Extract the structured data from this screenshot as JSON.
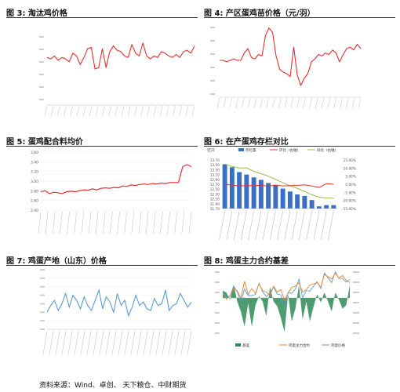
{
  "panels": {
    "p3": {
      "title": "图 3: 淘汰鸡价格"
    },
    "p4": {
      "title": "图 4: 产区蛋鸡苗价格（元/羽）"
    },
    "p5": {
      "title": "图 5: 蛋鸡配合料均价"
    },
    "p6": {
      "title": "图 6: 在产蛋鸡存栏对比"
    },
    "p7": {
      "title": "图 7: 鸡蛋产地（山东）价格"
    },
    "p8": {
      "title": "图 8: 鸡蛋主力合约基差"
    }
  },
  "footer": "资料来源：Wind、卓创、 天下粮仓、中财期货",
  "colors": {
    "red": "#e23030",
    "green": "#8ec045",
    "blue": "#3a6fc4",
    "line_blue": "#5b9bd5",
    "orange": "#e8842a",
    "dark_green": "#2e8b57"
  },
  "chart_data": [
    {
      "id": "p3",
      "type": "line",
      "x_range": [
        "2018",
        "2024"
      ],
      "ylim": [
        5,
        10
      ],
      "series": [
        {
          "values": [
            8.3,
            8.2,
            8.4,
            8.1,
            8.3,
            8.2,
            8.0,
            8.6,
            8.4,
            7.8,
            8.3,
            8.9,
            9.0,
            7.5,
            7.6,
            8.9,
            7.6,
            8.7,
            9.1,
            8.8,
            8.7,
            8.4,
            8.3,
            9.2,
            8.6,
            8.4,
            9.3,
            8.4,
            8.2,
            8.4,
            8.3,
            8.7,
            8.6,
            8.4,
            8.3,
            8.5,
            8.3,
            8.7,
            8.8,
            8.6,
            9.1
          ]
        }
      ]
    },
    {
      "id": "p4",
      "type": "line",
      "ylim": [
        0,
        5
      ],
      "series": [
        {
          "values": [
            2.5,
            2.5,
            2.4,
            2.5,
            2.6,
            2.5,
            2.5,
            3.0,
            3.3,
            2.7,
            2.6,
            2.9,
            2.8,
            4.2,
            4.7,
            4.4,
            2.8,
            1.9,
            1.7,
            1.6,
            1.4,
            3.4,
            1.5,
            0.8,
            1.3,
            1.6,
            2.4,
            2.6,
            2.9,
            2.8,
            3.0,
            2.9,
            3.2,
            3.0,
            2.4,
            2.9,
            3.3,
            3.4,
            3.2,
            3.6,
            3.3
          ]
        }
      ]
    },
    {
      "id": "p5",
      "type": "line",
      "yticks": [
        "3.60",
        "3.40",
        "3.20",
        "3.00",
        "2.80",
        "2.60",
        "2.40"
      ],
      "ylim": [
        2.4,
        3.6
      ],
      "series": [
        {
          "values": [
            2.78,
            2.8,
            2.74,
            2.77,
            2.76,
            2.74,
            2.78,
            2.79,
            2.78,
            2.8,
            2.82,
            2.81,
            2.84,
            2.82,
            2.85,
            2.86,
            2.85,
            2.87,
            2.86,
            2.9,
            2.89,
            2.92,
            2.91,
            2.93,
            2.94,
            2.93,
            2.95,
            2.94,
            2.96,
            2.95,
            2.97,
            2.97,
            2.97,
            3.3,
            3.34,
            3.3
          ]
        }
      ]
    },
    {
      "id": "p6",
      "type": "bar",
      "ylabel": "亿只",
      "legend": [
        "存栏量",
        "环比（右轴）",
        "同比（右轴）"
      ],
      "yticks_left": [
        "13.70",
        "13.50",
        "13.30",
        "13.10",
        "12.90",
        "12.70",
        "12.50",
        "12.30",
        "12.10",
        "11.90",
        "11.70"
      ],
      "yticks_right": [
        "15.00%",
        "10.00%",
        "5.00%",
        "0.00%",
        "-5.00%",
        "-10.00%",
        "-15.00%"
      ],
      "ylim_left": [
        11.7,
        13.7
      ],
      "ylim_right": [
        -15,
        15
      ],
      "bars": [
        13.52,
        13.4,
        13.2,
        13.1,
        12.98,
        12.88,
        12.75,
        12.67,
        12.52,
        12.4,
        12.28,
        12.22,
        12.05,
        11.79,
        11.84,
        11.84
      ],
      "mom": [
        0,
        -0.6,
        -1.0,
        -0.8,
        -0.9,
        -0.6,
        -1.2,
        -0.5,
        -1.1,
        -0.8,
        -0.7,
        -0.4,
        -1.1,
        -2.0,
        0.4,
        0
      ],
      "yoy": [
        12.5,
        11.0,
        10.0,
        10.0,
        8.0,
        6.5,
        5.0,
        3.0,
        1.0,
        -1.0,
        -2.5,
        -4.5,
        -6.5,
        -8.0,
        -8.5,
        -8.5
      ]
    },
    {
      "id": "p7",
      "type": "line",
      "ylim": [
        2.5,
        6
      ],
      "series": [
        {
          "values": [
            3.5,
            3.9,
            4.2,
            3.6,
            4.0,
            4.6,
            3.8,
            4.5,
            4.2,
            3.7,
            4.4,
            3.9,
            3.6,
            4.2,
            4.8,
            3.7,
            4.4,
            4.1,
            3.5,
            4.6,
            3.9,
            4.2,
            3.3,
            3.8,
            4.5,
            3.9,
            4.1,
            3.7,
            3.6,
            4.3,
            3.9,
            4.0,
            4.8,
            3.6,
            3.9,
            4.0,
            4.6,
            4.2,
            3.8,
            4.1
          ]
        }
      ]
    },
    {
      "id": "p8",
      "type": "area",
      "legend": [
        "基差",
        "鸡蛋主力合约",
        "鸡蛋价格"
      ],
      "basis": [
        80,
        60,
        -20,
        150,
        -40,
        -150,
        -320,
        -60,
        -320,
        -80,
        20,
        -40,
        -200,
        120,
        -40,
        -90,
        -220,
        -380,
        40,
        -260,
        -120,
        140,
        -240,
        -40,
        -260,
        -100,
        40,
        -50,
        60,
        -40,
        -150,
        60,
        -20,
        -120,
        -80,
        140
      ],
      "contract": [
        3900,
        3650,
        3800,
        4100,
        4000,
        3700,
        4400,
        3850,
        4100,
        3900,
        4300,
        4000,
        3950,
        3800,
        4200,
        3950,
        4050,
        3600,
        3900,
        4150,
        4200,
        4350,
        3950,
        4050,
        4250,
        4300,
        4350,
        4150,
        4700,
        4600,
        4500,
        4750,
        4550,
        4650,
        4450,
        4350
      ],
      "spot": [
        3950,
        3700,
        3780,
        4200,
        3950,
        3550,
        4080,
        3800,
        3800,
        3850,
        4320,
        3960,
        3750,
        3920,
        4160,
        3860,
        3830,
        3220,
        3940,
        3890,
        4080,
        4490,
        3710,
        4010,
        3990,
        4200,
        4390,
        4100,
        4760,
        4560,
        4350,
        4810,
        4530,
        4530,
        4370,
        4490
      ]
    }
  ]
}
